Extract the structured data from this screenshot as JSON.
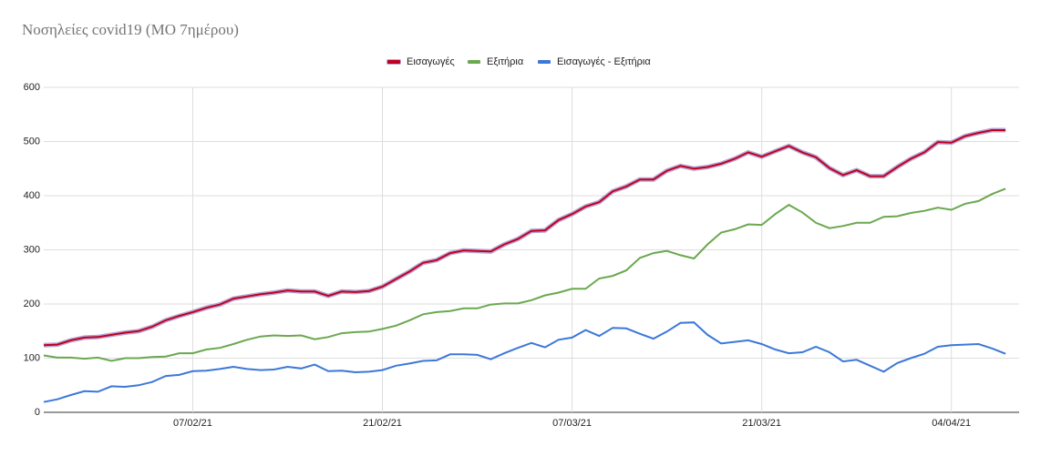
{
  "chart_data": {
    "type": "line",
    "title": "Νοσηλείες covid19 (ΜΟ 7ημέρου)",
    "categories": [
      null,
      null,
      null,
      null,
      null,
      null,
      null,
      null,
      null,
      null,
      null,
      "07/02/21",
      null,
      null,
      null,
      null,
      null,
      null,
      null,
      null,
      null,
      null,
      null,
      null,
      null,
      "21/02/21",
      null,
      null,
      null,
      null,
      null,
      null,
      null,
      null,
      null,
      null,
      null,
      null,
      null,
      "07/03/21",
      null,
      null,
      null,
      null,
      null,
      null,
      null,
      null,
      null,
      null,
      null,
      null,
      null,
      "21/03/21",
      null,
      null,
      null,
      null,
      null,
      null,
      null,
      null,
      null,
      null,
      null,
      null,
      null,
      "04/04/21",
      null,
      null,
      null,
      null
    ],
    "series": [
      {
        "name": "Εισαγωγές",
        "color": "#c0001e",
        "values": [
          124,
          125,
          133,
          138,
          139,
          143,
          147,
          150,
          158,
          170,
          178,
          185,
          193,
          199,
          210,
          214,
          218,
          221,
          225,
          223,
          223,
          215,
          223,
          222,
          224,
          232,
          246,
          260,
          276,
          281,
          294,
          299,
          298,
          297,
          310,
          320,
          335,
          336,
          355,
          366,
          380,
          388,
          408,
          417,
          430,
          430,
          446,
          455,
          450,
          453,
          459,
          468,
          480,
          472,
          482,
          492,
          480,
          471,
          451,
          438,
          447,
          436,
          436,
          453,
          468,
          480,
          499,
          498,
          510,
          516,
          521,
          521
        ]
      },
      {
        "name": "Εξιτήρια",
        "color": "#6aa84f",
        "values": [
          105,
          101,
          101,
          99,
          101,
          95,
          100,
          100,
          102,
          103,
          109,
          109,
          116,
          119,
          126,
          134,
          140,
          142,
          141,
          142,
          135,
          139,
          146,
          148,
          149,
          154,
          160,
          170,
          181,
          185,
          187,
          192,
          192,
          199,
          201,
          201,
          207,
          216,
          221,
          228,
          228,
          247,
          252,
          262,
          285,
          294,
          298,
          290,
          284,
          310,
          332,
          338,
          347,
          346,
          366,
          383,
          369,
          350,
          340,
          344,
          350,
          350,
          361,
          362,
          368,
          372,
          378,
          374,
          385,
          390,
          403,
          413
        ]
      },
      {
        "name": "Εισαγωγές - Εξιτήρια",
        "color": "#3c78d8",
        "values": [
          19,
          24,
          32,
          39,
          38,
          48,
          47,
          50,
          56,
          67,
          69,
          76,
          77,
          80,
          84,
          80,
          78,
          79,
          84,
          81,
          88,
          76,
          77,
          74,
          75,
          78,
          86,
          90,
          95,
          96,
          107,
          107,
          106,
          98,
          109,
          119,
          128,
          120,
          134,
          138,
          152,
          141,
          156,
          155,
          145,
          136,
          149,
          165,
          166,
          143,
          127,
          130,
          133,
          126,
          116,
          109,
          111,
          121,
          111,
          94,
          97,
          86,
          75,
          91,
          100,
          108,
          121,
          124,
          125,
          126,
          118,
          108
        ]
      }
    ],
    "ylim": [
      0,
      600
    ],
    "yticks": [
      0,
      100,
      200,
      300,
      400,
      500,
      600
    ],
    "grid": true
  }
}
